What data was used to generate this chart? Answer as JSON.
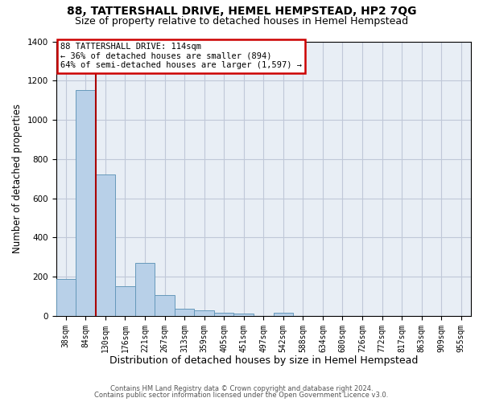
{
  "title1": "88, TATTERSHALL DRIVE, HEMEL HEMPSTEAD, HP2 7QG",
  "title2": "Size of property relative to detached houses in Hemel Hempstead",
  "xlabel": "Distribution of detached houses by size in Hemel Hempstead",
  "ylabel": "Number of detached properties",
  "footer1": "Contains HM Land Registry data © Crown copyright and database right 2024.",
  "footer2": "Contains public sector information licensed under the Open Government Licence v3.0.",
  "bin_labels": [
    "38sqm",
    "84sqm",
    "130sqm",
    "176sqm",
    "221sqm",
    "267sqm",
    "313sqm",
    "359sqm",
    "405sqm",
    "451sqm",
    "497sqm",
    "542sqm",
    "588sqm",
    "634sqm",
    "680sqm",
    "726sqm",
    "772sqm",
    "817sqm",
    "863sqm",
    "909sqm",
    "955sqm"
  ],
  "bar_values": [
    190,
    1150,
    720,
    150,
    270,
    107,
    35,
    30,
    15,
    13,
    0,
    15,
    0,
    0,
    0,
    0,
    0,
    0,
    0,
    0,
    0
  ],
  "bar_color": "#b8d0e8",
  "bar_edge_color": "#6699bb",
  "ylim_max": 1400,
  "yticks": [
    0,
    200,
    400,
    600,
    800,
    1000,
    1200,
    1400
  ],
  "vline_position": 1.5,
  "annotation_line1": "88 TATTERSHALL DRIVE: 114sqm",
  "annotation_line2": "← 36% of detached houses are smaller (894)",
  "annotation_line3": "64% of semi-detached houses are larger (1,597) →",
  "annotation_box_facecolor": "#ffffff",
  "annotation_box_edgecolor": "#cc0000",
  "bg_color": "#e8eef5",
  "grid_color": "#c0c8d8",
  "title1_fontsize": 10,
  "title2_fontsize": 9,
  "tick_fontsize": 7,
  "ylabel_fontsize": 8.5,
  "xlabel_fontsize": 9,
  "footer_fontsize": 6,
  "annotation_fontsize": 7.5
}
